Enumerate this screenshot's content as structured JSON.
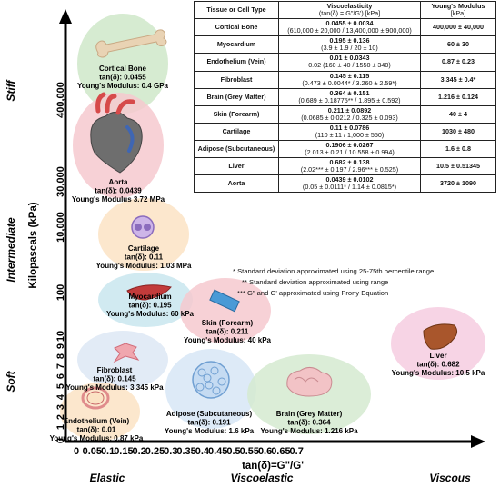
{
  "chart_data": {
    "type": "scatter",
    "xlabel": "tan(δ)=G\"/G'",
    "ylabel": "Kilopascals (kPa)",
    "x_ticks": [
      "0",
      "0.05",
      "0.1",
      "0.15",
      "0.2",
      "0.25",
      "0.3",
      "0.35",
      "0.4",
      "0.45",
      "0.5",
      "0.55",
      "0.6",
      "0.65",
      "0.7"
    ],
    "y_ticks": [
      "0",
      "1",
      "2",
      "3",
      "4",
      "5",
      "6",
      "7",
      "8",
      "9",
      "10",
      "100",
      "10,000",
      "30,000",
      "400,000"
    ],
    "xlim": [
      0,
      0.75
    ],
    "x_regions": [
      "Elastic",
      "Viscoelastic",
      "Viscous"
    ],
    "y_regions": [
      "Soft",
      "Intermediate",
      "Stiff"
    ],
    "points": [
      {
        "name": "Cortical Bone",
        "tan_label": "tan(δ): 0.0455",
        "modulus_label": "Young's Modulus: 0.4 GPa",
        "tan": 0.0455,
        "color": "#cfe8c9",
        "icon": "bone-icon"
      },
      {
        "name": "Aorta",
        "tan_label": "tan(δ): 0.0439",
        "modulus_label": "Young's Modulus 3.72 MPa",
        "tan": 0.0439,
        "color": "#f6c9cf",
        "icon": "heart-icon"
      },
      {
        "name": "Cartilage",
        "tan_label": "tan(δ): 0.11",
        "modulus_label": "Young's Modulus: 1.03 MPa",
        "tan": 0.11,
        "color": "#fbe3c4",
        "icon": "cartilage-cell-icon"
      },
      {
        "name": "Myocardium",
        "tan_label": "tan(δ): 0.195",
        "modulus_label": "Young's Modulus: 60 kPa",
        "tan": 0.195,
        "color": "#c9e6ee",
        "icon": "myocardium-icon"
      },
      {
        "name": "Skin (Forearm)",
        "tan_label": "tan(δ): 0.211",
        "modulus_label": "Young's Modulus: 40 kPa",
        "tan": 0.211,
        "color": "#f6c9cf",
        "icon": "skin-icon"
      },
      {
        "name": "Fibroblast",
        "tan_label": "tan(δ): 0.145",
        "modulus_label": "Young's Modulus: 3.345 kPa",
        "tan": 0.145,
        "color": "#dde8f4",
        "icon": "fibroblast-icon"
      },
      {
        "name": "Adipose (Subcutaneous)",
        "tan_label": "tan(δ): 0.191",
        "modulus_label": "Young's Modulus: 1.6 kPa",
        "tan": 0.191,
        "color": "#d7e6f6",
        "icon": "adipose-icon"
      },
      {
        "name": "Endothelium (Vein)",
        "tan_label": "tan(δ): 0.01",
        "modulus_label": "Young's Modulus: 0.87 kPa",
        "tan": 0.01,
        "color": "#fbe3c4",
        "icon": "vein-icon"
      },
      {
        "name": "Brain (Grey Matter)",
        "tan_label": "tan(δ): 0.364",
        "modulus_label": "Young's Modulus: 1.216 kPa",
        "tan": 0.364,
        "color": "#d5ead0",
        "icon": "brain-icon"
      },
      {
        "name": "Liver",
        "tan_label": "tan(δ): 0.682",
        "modulus_label": "Young's Modulus: 10.5 kPa",
        "tan": 0.682,
        "color": "#f6cde0",
        "icon": "liver-icon"
      }
    ]
  },
  "table": {
    "headers": [
      "Tissue or Cell Type",
      "Viscoelasticity",
      "(tan(δ) = G\"/G') [kPa]",
      "Young's Modulus",
      "[kPa]"
    ],
    "rows": [
      {
        "tissue": "Cortical Bone",
        "visc_main": "0.0455 ± 0.0034",
        "visc_detail": "(610,000 ± 20,000 / 13,400,000 ± 900,000)",
        "modulus": "400,000 ± 40,000"
      },
      {
        "tissue": "Myocardium",
        "visc_main": "0.195 ± 0.136",
        "visc_detail": "(3.9 ± 1.9 / 20 ± 10)",
        "modulus": "60 ± 30"
      },
      {
        "tissue": "Endothelium (Vein)",
        "visc_main": "0.01 ± 0.0343",
        "visc_detail": "0.02 (160 ± 40 / 1550 ± 340)",
        "modulus": "0.87 ± 0.23"
      },
      {
        "tissue": "Fibroblast",
        "visc_main": "0.145 ± 0.115",
        "visc_detail": "(0.473 ± 0.0044* / 3.260 ± 2.59*)",
        "modulus": "3.345 ± 0.4*"
      },
      {
        "tissue": "Brain (Grey Matter)",
        "visc_main": "0.364 ± 0.151",
        "visc_detail": "(0.689 ± 0.18775** / 1.895 ± 0.592)",
        "modulus": "1.216 ± 0.124"
      },
      {
        "tissue": "Skin (Forearm)",
        "visc_main": "0.211 ± 0.0892",
        "visc_detail": "(0.0685 ± 0.0212 / 0.325 ± 0.093)",
        "modulus": "40 ± 4"
      },
      {
        "tissue": "Cartilage",
        "visc_main": "0.11 ± 0.0786",
        "visc_detail": "(110 ± 11 / 1,000 ± 550)",
        "modulus": "1030 ± 480"
      },
      {
        "tissue": "Adipose (Subcutaneous)",
        "visc_main": "0.1906 ± 0.0267",
        "visc_detail": "(2.013 ± 0.21 / 10.558 ± 0.994)",
        "modulus": "1.6 ± 0.8"
      },
      {
        "tissue": "Liver",
        "visc_main": "0.682 ± 0.138",
        "visc_detail": "(2.02*** ± 0.197 / 2.96*** ± 0.525)",
        "modulus": "10.5 ± 0.51345"
      },
      {
        "tissue": "Aorta",
        "visc_main": "0.0439 ± 0.0102",
        "visc_detail": "(0.05 ± 0.0111* / 1.14 ± 0.0815*)",
        "modulus": "3720 ± 1090"
      }
    ]
  },
  "notes": [
    "* Standard deviation approximated using 25-75th percentile range",
    "** Standard deviation approximated using range",
    "*** G\" and G' approximated using Prony Equation"
  ]
}
